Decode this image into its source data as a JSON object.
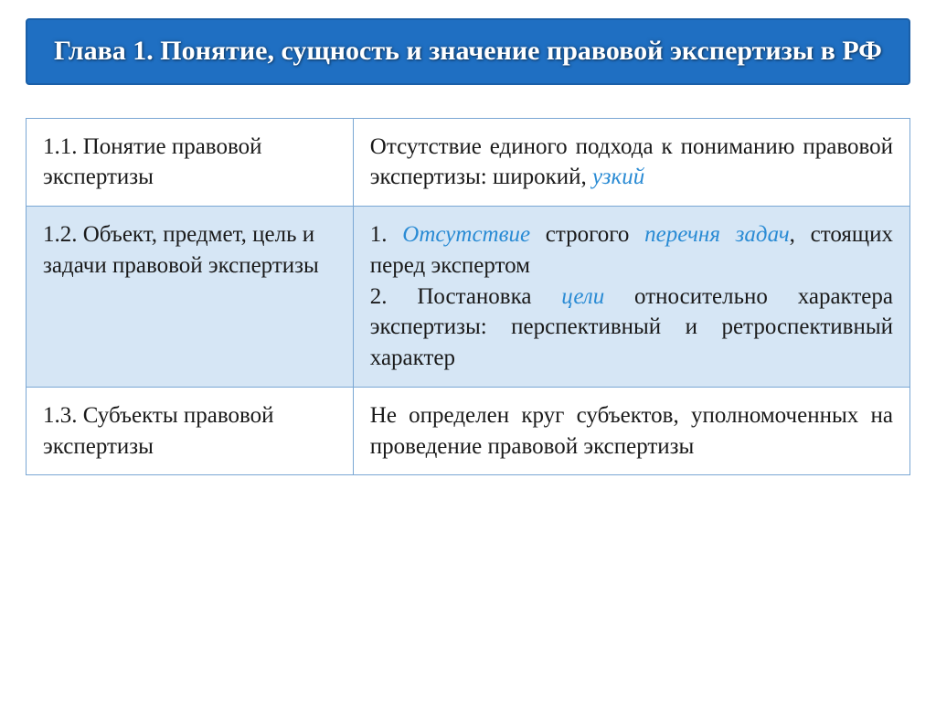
{
  "header": {
    "title": "Глава 1. Понятие, сущность и значение правовой экспертизы в РФ"
  },
  "colors": {
    "banner_bg": "#1f6fc2",
    "banner_border": "#1a5fa8",
    "banner_text": "#ffffff",
    "cell_border": "#7aa7d4",
    "highlight_bg": "#d6e6f5",
    "emphasis_blue": "#2a8bd4",
    "body_text": "#1a1a1a"
  },
  "typography": {
    "title_fontsize": 30,
    "body_fontsize": 25,
    "font_family": "Georgia / Times-like serif"
  },
  "table": {
    "column_widths_pct": [
      37,
      63
    ],
    "rows": [
      {
        "highlighted": false,
        "left": "1.1. Понятие правовой экспертизы",
        "right_segments": [
          {
            "text": "Отсутствие единого подхода к пониманию правовой экспертизы: широкий, ",
            "style": "plain"
          },
          {
            "text": "узкий",
            "style": "blue-italic"
          }
        ]
      },
      {
        "highlighted": true,
        "left": "1.2. Объект, предмет, цель и задачи правовой экспертизы",
        "right_segments": [
          {
            "text": "1. ",
            "style": "plain"
          },
          {
            "text": "Отсутствие",
            "style": "blue-italic"
          },
          {
            "text": " строгого ",
            "style": "plain"
          },
          {
            "text": "перечня задач",
            "style": "blue-italic"
          },
          {
            "text": ", стоящих перед экспертом",
            "style": "plain"
          },
          {
            "text": "\n",
            "style": "br"
          },
          {
            "text": "2. Постановка ",
            "style": "plain"
          },
          {
            "text": "цели",
            "style": "blue-italic"
          },
          {
            "text": " относительно характера экспертизы: перспективный и ретроспективный характер",
            "style": "plain"
          }
        ]
      },
      {
        "highlighted": false,
        "left": "1.3. Субъекты правовой экспертизы",
        "right_segments": [
          {
            "text": "Не определен круг субъектов, уполномоченных на проведение правовой экспертизы",
            "style": "plain"
          }
        ]
      }
    ]
  }
}
